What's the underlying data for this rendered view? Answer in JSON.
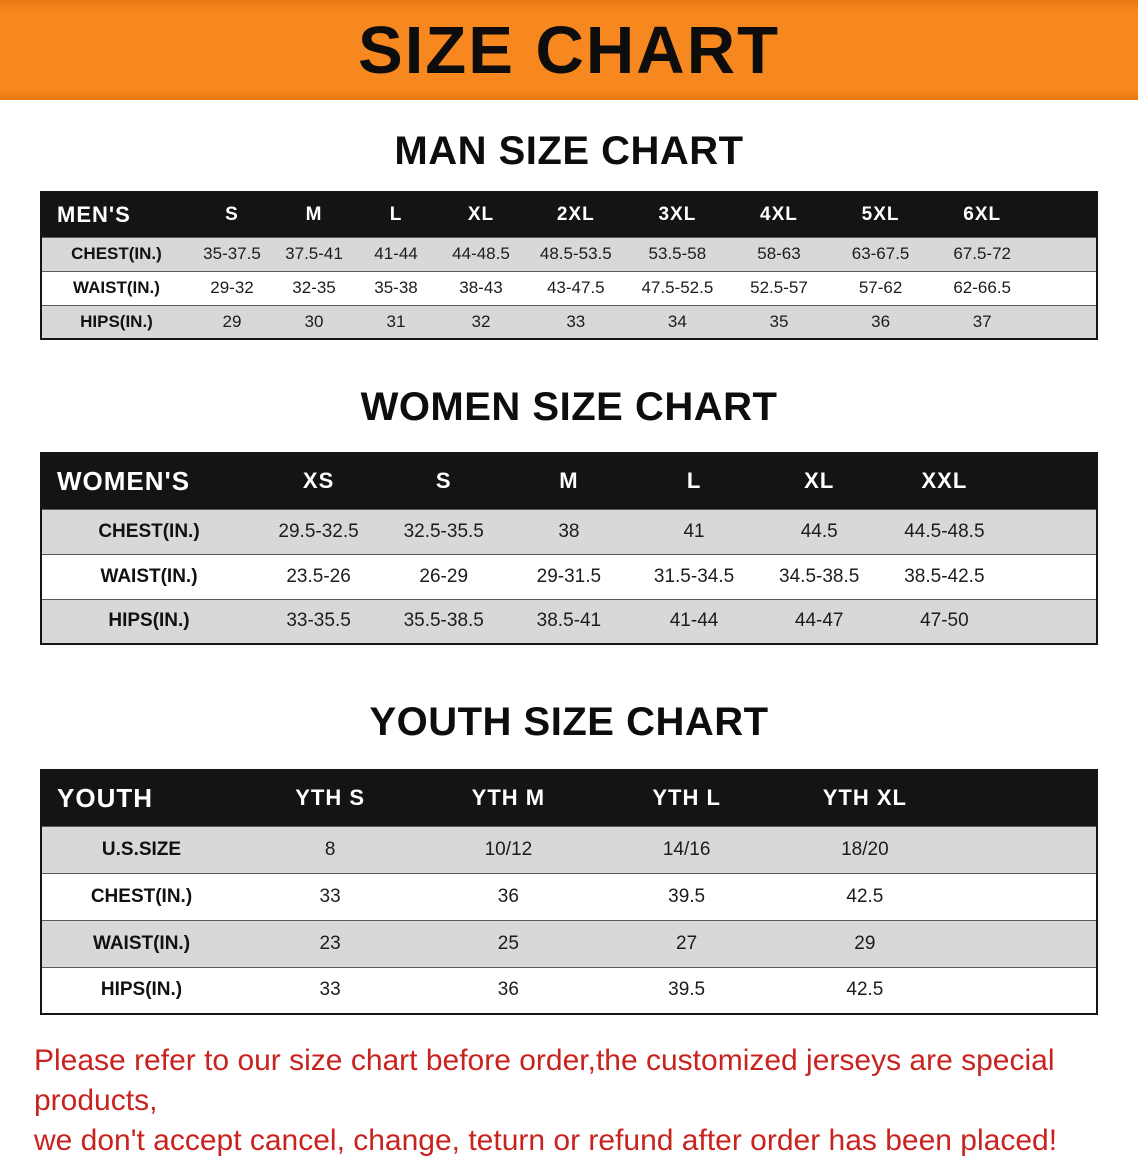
{
  "banner": {
    "title": "SIZE CHART"
  },
  "colors": {
    "banner_bg": "#f6881f",
    "header_row_bg": "#141414",
    "shaded_row_bg": "#d8d8d8",
    "notice_text": "#c8231f"
  },
  "sections": [
    {
      "title": "MAN SIZE CHART",
      "header": [
        "MEN'S",
        "S",
        "M",
        "L",
        "XL",
        "2XL",
        "3XL",
        "4XL",
        "5XL",
        "6XL"
      ],
      "rows": [
        [
          "CHEST(IN.)",
          "35-37.5",
          "37.5-41",
          "41-44",
          "44-48.5",
          "48.5-53.5",
          "53.5-58",
          "58-63",
          "63-67.5",
          "67.5-72"
        ],
        [
          "WAIST(IN.)",
          "29-32",
          "32-35",
          "35-38",
          "38-43",
          "43-47.5",
          "47.5-52.5",
          "52.5-57",
          "57-62",
          "62-66.5"
        ],
        [
          "HIPS(IN.)",
          "29",
          "30",
          "31",
          "32",
          "33",
          "34",
          "35",
          "36",
          "37"
        ]
      ]
    },
    {
      "title": "WOMEN SIZE CHART",
      "header": [
        "WOMEN'S",
        "XS",
        "S",
        "M",
        "L",
        "XL",
        "XXL"
      ],
      "rows": [
        [
          "CHEST(IN.)",
          "29.5-32.5",
          "32.5-35.5",
          "38",
          "41",
          "44.5",
          "44.5-48.5"
        ],
        [
          "WAIST(IN.)",
          "23.5-26",
          "26-29",
          "29-31.5",
          "31.5-34.5",
          "34.5-38.5",
          "38.5-42.5"
        ],
        [
          "HIPS(IN.)",
          "33-35.5",
          "35.5-38.5",
          "38.5-41",
          "41-44",
          "44-47",
          "47-50"
        ]
      ]
    },
    {
      "title": "YOUTH SIZE CHART",
      "header": [
        "YOUTH",
        "YTH S",
        "YTH M",
        "YTH L",
        "YTH XL"
      ],
      "rows": [
        [
          "U.S.SIZE",
          "8",
          "10/12",
          "14/16",
          "18/20"
        ],
        [
          "CHEST(IN.)",
          "33",
          "36",
          "39.5",
          "42.5"
        ],
        [
          "WAIST(IN.)",
          "23",
          "25",
          "27",
          "29"
        ],
        [
          "HIPS(IN.)",
          "33",
          "36",
          "39.5",
          "42.5"
        ]
      ]
    }
  ],
  "footer": {
    "line1": "Please refer to our size chart before order,the customized jerseys are special products,",
    "line2": "we don't accept cancel, change, teturn or refund after order has been placed!"
  }
}
